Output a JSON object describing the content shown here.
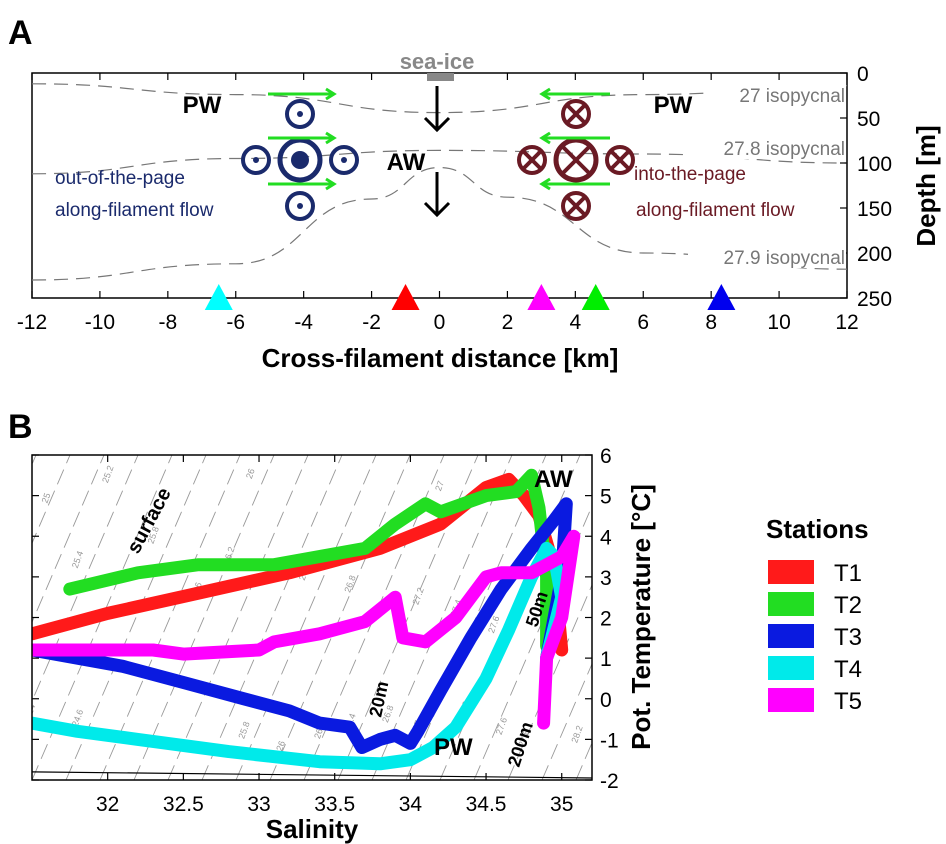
{
  "figure": {
    "panel_a_label": "A",
    "panel_b_label": "B"
  },
  "chart_data": [
    {
      "type": "diagram",
      "panel": "A",
      "xlabel": "Cross-filament distance [km]",
      "ylabel": "Depth [m]",
      "xlim": [
        -12,
        12
      ],
      "ylim": [
        250,
        0
      ],
      "xticks": [
        -12,
        -10,
        -8,
        -6,
        -4,
        -2,
        0,
        2,
        4,
        6,
        8,
        10,
        12
      ],
      "yticks": [
        0,
        50,
        100,
        150,
        200,
        250
      ],
      "isopycnals": [
        {
          "label": "27 isopycnal",
          "points": [
            [
              -12,
              12
            ],
            [
              -6,
              24
            ],
            [
              0,
              44
            ],
            [
              6,
              24
            ],
            [
              12,
              14
            ]
          ]
        },
        {
          "label": "27.8 isopycnal",
          "points": [
            [
              -12,
              112
            ],
            [
              -6,
              95
            ],
            [
              0,
              86
            ],
            [
              6,
              90
            ],
            [
              12,
              100
            ]
          ]
        },
        {
          "label": "27.9 isopycnal",
          "points": [
            [
              -12,
              230
            ],
            [
              -6,
              212
            ],
            [
              -2,
              140
            ],
            [
              0,
              105
            ],
            [
              2,
              138
            ],
            [
              6,
              200
            ],
            [
              12,
              218
            ]
          ]
        }
      ],
      "annotations": {
        "sea_ice": "sea-ice",
        "pw_left": "PW",
        "pw_right": "PW",
        "aw": "AW",
        "left_flow_line1": "out-of-the-page",
        "left_flow_line2": "along-filament flow",
        "right_flow_line1": "into-the-page",
        "right_flow_line2": "along-filament flow"
      },
      "station_markers": [
        {
          "x": -6.5,
          "color": "#00ffff"
        },
        {
          "x": -1.0,
          "color": "#ff0000"
        },
        {
          "x": 3.0,
          "color": "#ff00ff"
        },
        {
          "x": 4.6,
          "color": "#00ee00"
        },
        {
          "x": 8.3,
          "color": "#0000ee"
        }
      ],
      "colors": {
        "left_symbols": "#1a2a6c",
        "right_symbols": "#6a1a24",
        "arrows_green": "#22dd22",
        "isopycnal": "#777777"
      }
    },
    {
      "type": "line",
      "panel": "B",
      "xlabel": "Salinity",
      "ylabel": "Pot. Temperature [°C]",
      "xlim": [
        31.5,
        35.2
      ],
      "ylim": [
        -2,
        6
      ],
      "xticks": [
        32,
        32.5,
        33,
        33.5,
        34,
        34.5,
        35
      ],
      "yticks": [
        -2,
        -1,
        0,
        1,
        2,
        3,
        4,
        5,
        6
      ],
      "legend_title": "Stations",
      "legend_position": "right",
      "annotations": {
        "surface": "surface",
        "aw": "AW",
        "pw": "PW",
        "d20": "20m",
        "d50": "50m",
        "d200": "200m"
      },
      "series": [
        {
          "name": "T1",
          "color": "#ff1a1a",
          "points": [
            [
              31.5,
              1.6
            ],
            [
              32.0,
              2.1
            ],
            [
              32.6,
              2.6
            ],
            [
              33.2,
              3.1
            ],
            [
              33.8,
              3.7
            ],
            [
              34.2,
              4.3
            ],
            [
              34.5,
              5.2
            ],
            [
              34.65,
              5.4
            ],
            [
              34.75,
              5.0
            ],
            [
              34.85,
              4.5
            ],
            [
              34.95,
              3.2
            ],
            [
              35.0,
              1.2
            ]
          ]
        },
        {
          "name": "T2",
          "color": "#22dd22",
          "points": [
            [
              31.75,
              2.7
            ],
            [
              32.2,
              3.1
            ],
            [
              32.6,
              3.3
            ],
            [
              32.8,
              3.3
            ],
            [
              33.1,
              3.3
            ],
            [
              33.7,
              3.7
            ],
            [
              33.9,
              4.3
            ],
            [
              34.1,
              4.8
            ],
            [
              34.2,
              4.6
            ],
            [
              34.5,
              5.0
            ],
            [
              34.7,
              5.1
            ],
            [
              34.8,
              5.5
            ],
            [
              34.85,
              4.7
            ],
            [
              34.9,
              3.0
            ],
            [
              34.9,
              1.3
            ]
          ]
        },
        {
          "name": "T3",
          "color": "#0a1ae0",
          "points": [
            [
              31.5,
              1.2
            ],
            [
              32.1,
              0.8
            ],
            [
              32.5,
              0.4
            ],
            [
              32.9,
              0.0
            ],
            [
              33.2,
              -0.3
            ],
            [
              33.4,
              -0.6
            ],
            [
              33.6,
              -0.7
            ],
            [
              33.68,
              -1.2
            ],
            [
              33.8,
              -1.0
            ],
            [
              33.9,
              -0.9
            ],
            [
              34.0,
              -1.1
            ],
            [
              34.05,
              -0.8
            ],
            [
              34.2,
              0.2
            ],
            [
              34.4,
              1.5
            ],
            [
              34.6,
              2.7
            ],
            [
              34.8,
              3.7
            ],
            [
              34.95,
              4.4
            ],
            [
              35.03,
              4.8
            ],
            [
              35.0,
              3.0
            ],
            [
              34.9,
              1.0
            ]
          ]
        },
        {
          "name": "T4",
          "color": "#00eaea",
          "points": [
            [
              31.5,
              -0.6
            ],
            [
              31.8,
              -0.8
            ],
            [
              32.2,
              -1.0
            ],
            [
              32.8,
              -1.3
            ],
            [
              33.4,
              -1.55
            ],
            [
              33.8,
              -1.6
            ],
            [
              34.0,
              -1.5
            ],
            [
              34.15,
              -1.2
            ],
            [
              34.3,
              -0.7
            ],
            [
              34.5,
              0.5
            ],
            [
              34.65,
              1.7
            ],
            [
              34.8,
              3.0
            ],
            [
              34.9,
              3.7
            ],
            [
              34.95,
              3.5
            ],
            [
              35.0,
              2.5
            ],
            [
              34.9,
              1.0
            ]
          ]
        },
        {
          "name": "T5",
          "color": "#ff00ff",
          "points": [
            [
              31.5,
              1.2
            ],
            [
              32.0,
              1.2
            ],
            [
              32.3,
              1.2
            ],
            [
              32.5,
              1.1
            ],
            [
              33.0,
              1.2
            ],
            [
              33.1,
              1.4
            ],
            [
              33.4,
              1.6
            ],
            [
              33.7,
              1.9
            ],
            [
              33.9,
              2.5
            ],
            [
              33.95,
              1.5
            ],
            [
              34.1,
              1.4
            ],
            [
              34.3,
              2.0
            ],
            [
              34.5,
              3.0
            ],
            [
              34.6,
              3.1
            ],
            [
              34.8,
              3.1
            ],
            [
              35.0,
              3.5
            ],
            [
              35.08,
              4.0
            ],
            [
              35.0,
              2.0
            ],
            [
              34.9,
              1.0
            ],
            [
              34.88,
              -0.6
            ]
          ]
        }
      ],
      "isopycnal_lines": [
        {
          "label": "25.4",
          "s": 31.8,
          "t": 3.2
        },
        {
          "label": "25.8",
          "s": 32.3,
          "t": 3.8
        },
        {
          "label": "26.2",
          "s": 32.8,
          "t": 3.3
        },
        {
          "label": "26.6",
          "s": 33.3,
          "t": 2.9
        },
        {
          "label": "26.8",
          "s": 33.6,
          "t": 2.6
        },
        {
          "label": "27.2",
          "s": 34.05,
          "t": 2.3
        },
        {
          "label": "27.4",
          "s": 34.3,
          "t": 2.0
        },
        {
          "label": "27.6",
          "s": 34.55,
          "t": 1.6
        },
        {
          "label": "25",
          "s": 31.6,
          "t": 4.8
        },
        {
          "label": "26",
          "s": 32.6,
          "t": 2.6
        },
        {
          "label": "25.2",
          "s": 32.0,
          "t": 5.3
        },
        {
          "label": "26",
          "s": 32.95,
          "t": 5.4
        },
        {
          "label": "27",
          "s": 34.2,
          "t": 5.1
        },
        {
          "label": "24",
          "s": 31.5,
          "t": -0.4
        },
        {
          "label": "24.6",
          "s": 31.8,
          "t": -0.7
        },
        {
          "label": "25.8",
          "s": 32.9,
          "t": -1.0
        },
        {
          "label": "26",
          "s": 33.15,
          "t": -1.3
        },
        {
          "label": "26.2",
          "s": 33.4,
          "t": -1.0
        },
        {
          "label": "26.4",
          "s": 33.6,
          "t": -0.8
        },
        {
          "label": "26.8",
          "s": 33.85,
          "t": -0.6
        },
        {
          "label": "27",
          "s": 34.05,
          "t": -0.8
        },
        {
          "label": "27.2",
          "s": 34.35,
          "t": -0.5
        },
        {
          "label": "27.6",
          "s": 34.6,
          "t": -0.9
        },
        {
          "label": "27.8",
          "s": 34.75,
          "t": -1.2
        },
        {
          "label": "28.2",
          "s": 35.1,
          "t": -1.1
        }
      ]
    }
  ]
}
